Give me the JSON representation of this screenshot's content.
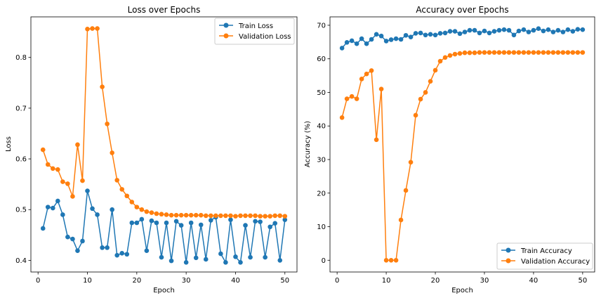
{
  "chart_data": [
    {
      "type": "line",
      "title": "Loss over Epochs",
      "xlabel": "Epoch",
      "ylabel": "Loss",
      "xlim": [
        -1.45,
        52.45
      ],
      "ylim": [
        0.377,
        0.88
      ],
      "xticks": [
        0,
        10,
        20,
        30,
        40,
        50
      ],
      "yticks": [
        0.4,
        0.5,
        0.6,
        0.7,
        0.8
      ],
      "xtick_labels": [
        "0",
        "10",
        "20",
        "30",
        "40",
        "50"
      ],
      "ytick_labels": [
        "0.4",
        "0.5",
        "0.6",
        "0.7",
        "0.8"
      ],
      "legend_position": "top-right",
      "grid": false,
      "x": [
        1,
        2,
        3,
        4,
        5,
        6,
        7,
        8,
        9,
        10,
        11,
        12,
        13,
        14,
        15,
        16,
        17,
        18,
        19,
        20,
        21,
        22,
        23,
        24,
        25,
        26,
        27,
        28,
        29,
        30,
        31,
        32,
        33,
        34,
        35,
        36,
        37,
        38,
        39,
        40,
        41,
        42,
        43,
        44,
        45,
        46,
        47,
        48,
        49,
        50
      ],
      "series": [
        {
          "name": "Train Loss",
          "color": "#1f77b4",
          "values": [
            0.463,
            0.505,
            0.503,
            0.517,
            0.49,
            0.446,
            0.442,
            0.419,
            0.438,
            0.537,
            0.502,
            0.49,
            0.425,
            0.425,
            0.5,
            0.41,
            0.414,
            0.412,
            0.474,
            0.474,
            0.481,
            0.419,
            0.478,
            0.474,
            0.406,
            0.474,
            0.399,
            0.477,
            0.469,
            0.396,
            0.474,
            0.405,
            0.47,
            0.402,
            0.479,
            0.485,
            0.413,
            0.396,
            0.48,
            0.407,
            0.396,
            0.469,
            0.406,
            0.477,
            0.476,
            0.406,
            0.466,
            0.473,
            0.4,
            0.48
          ]
        },
        {
          "name": "Validation Loss",
          "color": "#ff7f0e",
          "values": [
            0.618,
            0.589,
            0.581,
            0.579,
            0.555,
            0.551,
            0.526,
            0.628,
            0.557,
            0.856,
            0.857,
            0.857,
            0.742,
            0.669,
            0.612,
            0.558,
            0.54,
            0.527,
            0.515,
            0.505,
            0.5,
            0.496,
            0.494,
            0.492,
            0.491,
            0.49,
            0.489,
            0.489,
            0.489,
            0.489,
            0.489,
            0.489,
            0.489,
            0.488,
            0.488,
            0.488,
            0.488,
            0.488,
            0.488,
            0.487,
            0.488,
            0.488,
            0.488,
            0.488,
            0.487,
            0.487,
            0.487,
            0.488,
            0.488,
            0.487
          ]
        }
      ]
    },
    {
      "type": "line",
      "title": "Accuracy over Epochs",
      "xlabel": "Epoch",
      "ylabel": "Accuracy (%)",
      "xlim": [
        -1.45,
        52.45
      ],
      "ylim": [
        -3.5,
        72.5
      ],
      "xticks": [
        0,
        10,
        20,
        30,
        40,
        50
      ],
      "yticks": [
        0,
        10,
        20,
        30,
        40,
        50,
        60,
        70
      ],
      "xtick_labels": [
        "0",
        "10",
        "20",
        "30",
        "40",
        "50"
      ],
      "ytick_labels": [
        "0",
        "10",
        "20",
        "30",
        "40",
        "50",
        "60",
        "70"
      ],
      "legend_position": "bottom-right",
      "grid": false,
      "x": [
        1,
        2,
        3,
        4,
        5,
        6,
        7,
        8,
        9,
        10,
        11,
        12,
        13,
        14,
        15,
        16,
        17,
        18,
        19,
        20,
        21,
        22,
        23,
        24,
        25,
        26,
        27,
        28,
        29,
        30,
        31,
        32,
        33,
        34,
        35,
        36,
        37,
        38,
        39,
        40,
        41,
        42,
        43,
        44,
        45,
        46,
        47,
        48,
        49,
        50
      ],
      "series": [
        {
          "name": "Train Accuracy",
          "color": "#1f77b4",
          "values": [
            63.2,
            64.9,
            65.4,
            64.5,
            66.0,
            64.5,
            65.8,
            67.3,
            66.8,
            65.3,
            65.7,
            66.0,
            65.8,
            67.0,
            66.5,
            67.6,
            67.7,
            67.1,
            67.3,
            67.1,
            67.6,
            67.7,
            68.2,
            68.2,
            67.5,
            68.0,
            68.5,
            68.5,
            67.7,
            68.3,
            67.7,
            68.2,
            68.5,
            68.7,
            68.5,
            67.1,
            68.3,
            68.7,
            68.0,
            68.5,
            69.0,
            68.3,
            68.7,
            68.0,
            68.5,
            68.0,
            68.7,
            68.2,
            68.8,
            68.7
          ]
        },
        {
          "name": "Validation Accuracy",
          "color": "#ff7f0e",
          "values": [
            42.5,
            48.1,
            48.8,
            48.1,
            54.0,
            55.5,
            56.5,
            35.9,
            51.0,
            0.0,
            0.0,
            0.0,
            12.0,
            20.8,
            29.2,
            43.2,
            48.0,
            50.0,
            53.3,
            56.6,
            59.3,
            60.4,
            61.0,
            61.4,
            61.6,
            61.8,
            61.8,
            61.8,
            61.9,
            61.9,
            61.9,
            61.9,
            61.9,
            61.9,
            61.9,
            61.9,
            61.9,
            61.9,
            61.9,
            61.9,
            61.9,
            61.9,
            61.9,
            61.9,
            61.9,
            61.9,
            61.9,
            61.9,
            61.9,
            61.9
          ]
        }
      ]
    }
  ]
}
